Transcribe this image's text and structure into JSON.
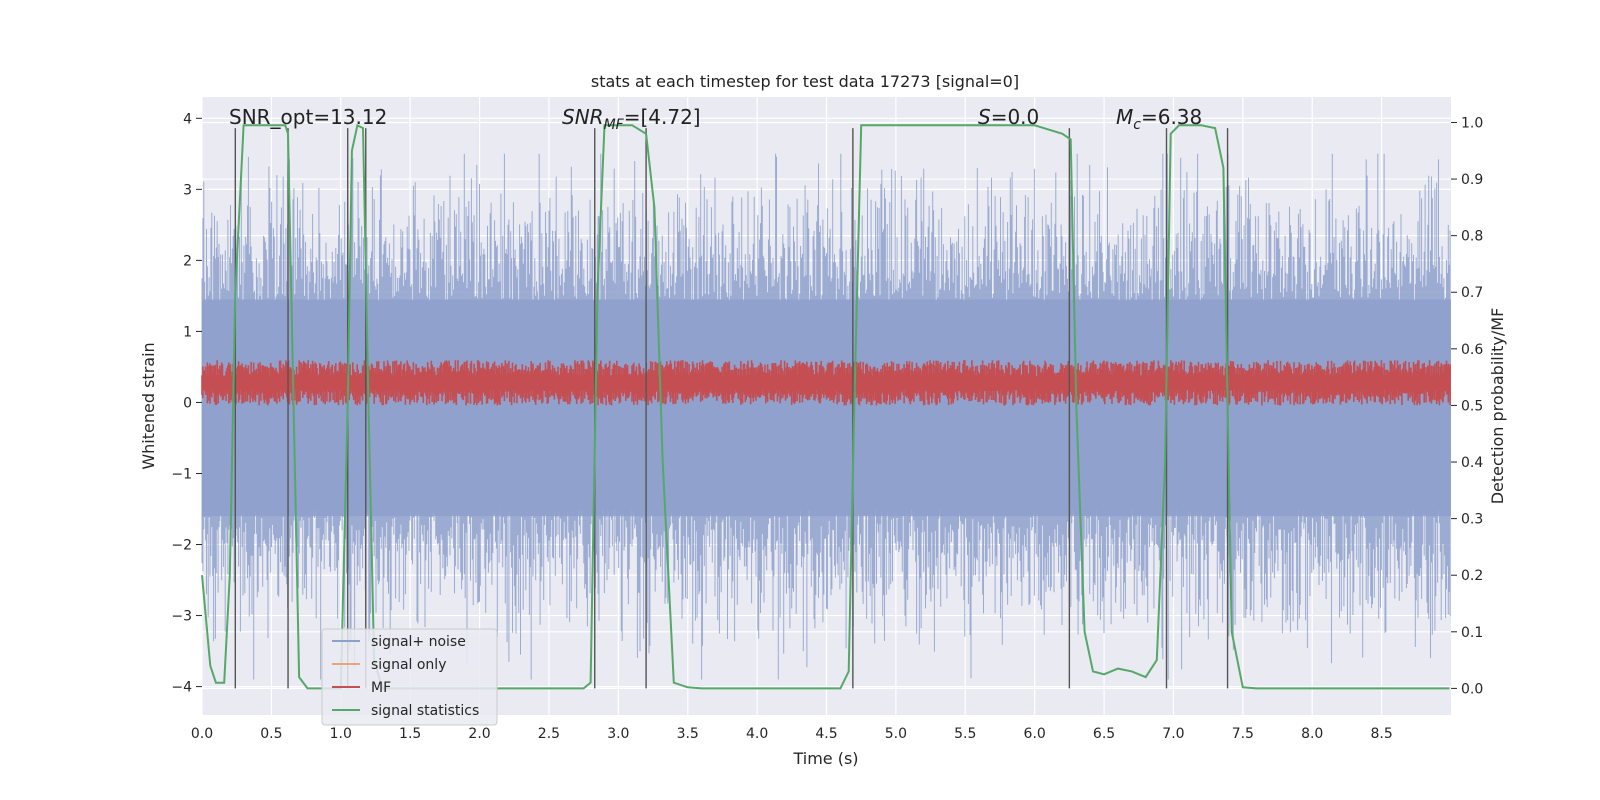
{
  "chart_data": {
    "type": "line",
    "title": "stats at each timestep for test data 17273 [signal=0]",
    "xlabel": "Time (s)",
    "ylabel_left": "Whitened strain",
    "ylabel_right": "Detection probability/MF",
    "xlim": [
      0,
      9.0
    ],
    "ylim_left": [
      -4.4,
      4.3
    ],
    "ylim_right": [
      -0.047,
      1.045
    ],
    "x_ticks": [
      0.0,
      0.5,
      1.0,
      1.5,
      2.0,
      2.5,
      3.0,
      3.5,
      4.0,
      4.5,
      5.0,
      5.5,
      6.0,
      6.5,
      7.0,
      7.5,
      8.0,
      8.5
    ],
    "x_tick_labels": [
      "0.0",
      "0.5",
      "1.0",
      "1.5",
      "2.0",
      "2.5",
      "3.0",
      "3.5",
      "4.0",
      "4.5",
      "5.0",
      "5.5",
      "6.0",
      "6.5",
      "7.0",
      "7.5",
      "8.0",
      "8.5"
    ],
    "y_left_ticks": [
      4,
      3,
      2,
      1,
      0,
      -1,
      -2,
      -3,
      -4
    ],
    "y_left_tick_labels": [
      "4",
      "3",
      "2",
      "1",
      "0",
      "−1",
      "−2",
      "−3",
      "−4"
    ],
    "y_right_ticks": [
      1.0,
      0.9,
      0.8,
      0.7,
      0.6,
      0.5,
      0.4,
      0.3,
      0.2,
      0.1,
      0.0
    ],
    "y_right_tick_labels": [
      "1.0",
      "0.9",
      "0.8",
      "0.7",
      "0.6",
      "0.5",
      "0.4",
      "0.3",
      "0.2",
      "0.1",
      "0.0"
    ],
    "grid": true,
    "legend_position": "lower-left",
    "annotations": {
      "snr_opt": "SNR_opt=13.12",
      "snr_mf_main": "SNR",
      "snr_mf_sub": "MF",
      "snr_mf_rest": "=[4.72]",
      "s_main": "S",
      "s_rest": "=0.0",
      "mc_main": "M",
      "mc_sub": "c",
      "mc_rest": "=6.38"
    },
    "series": [
      {
        "name": "signal+ noise",
        "color": "#8da0cb",
        "style": "dense noise",
        "approx_amplitude": 3.5
      },
      {
        "name": "signal only",
        "color": "#e8a37f",
        "values": []
      },
      {
        "name": "MF",
        "color": "#c44e52",
        "style": "band",
        "approx_range_right_axis": [
          0.5,
          0.58
        ]
      },
      {
        "name": "signal statistics",
        "color": "#55a868",
        "axis": "right",
        "x": [
          0.0,
          0.06,
          0.1,
          0.16,
          0.2,
          0.24,
          0.3,
          0.45,
          0.6,
          0.62,
          0.66,
          0.7,
          0.76,
          1.0,
          1.05,
          1.08,
          1.12,
          1.16,
          1.2,
          1.24,
          1.3,
          1.5,
          2.0,
          2.5,
          2.75,
          2.8,
          2.85,
          2.9,
          3.0,
          3.1,
          3.2,
          3.26,
          3.32,
          3.4,
          3.5,
          3.6,
          3.8,
          4.0,
          4.5,
          4.6,
          4.66,
          4.7,
          4.75,
          4.8,
          5.0,
          5.5,
          6.0,
          6.2,
          6.26,
          6.3,
          6.36,
          6.42,
          6.5,
          6.6,
          6.7,
          6.8,
          6.88,
          6.94,
          6.98,
          7.04,
          7.1,
          7.2,
          7.3,
          7.36,
          7.42,
          7.5,
          7.6,
          8.0,
          8.5,
          8.99
        ],
        "values": [
          0.2,
          0.04,
          0.01,
          0.01,
          0.2,
          0.7,
          0.995,
          0.995,
          0.995,
          0.98,
          0.5,
          0.02,
          0.0,
          0.0,
          0.5,
          0.95,
          0.995,
          0.99,
          0.5,
          0.05,
          0.0,
          0.0,
          0.0,
          0.0,
          0.0,
          0.01,
          0.7,
          0.995,
          0.995,
          0.995,
          0.98,
          0.85,
          0.4,
          0.01,
          0.002,
          0.0,
          0.0,
          0.0,
          0.0,
          0.0,
          0.03,
          0.5,
          0.995,
          0.995,
          0.995,
          0.995,
          0.995,
          0.98,
          0.97,
          0.5,
          0.1,
          0.03,
          0.025,
          0.035,
          0.03,
          0.02,
          0.05,
          0.4,
          0.98,
          0.995,
          0.995,
          0.995,
          0.99,
          0.92,
          0.1,
          0.002,
          0.0,
          0.0,
          0.0,
          0.0
        ]
      }
    ],
    "vertical_markers": [
      0.24,
      0.62,
      1.05,
      1.18,
      2.83,
      3.2,
      4.69,
      6.25,
      6.95,
      7.39
    ]
  }
}
